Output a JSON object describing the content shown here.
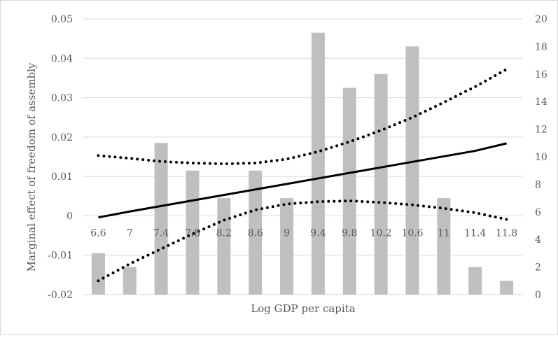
{
  "chart_data": {
    "type": "bar",
    "title": "",
    "xlabel": "Log GDP per capita",
    "ylabel": "Marginal effect of freedom of assembly",
    "categories": [
      "6.6",
      "7",
      "7.4",
      "7.8",
      "8.2",
      "8.6",
      "9",
      "9.4",
      "9.8",
      "10.2",
      "10.6",
      "11",
      "11.4",
      "11.8"
    ],
    "y_primary": {
      "min": -0.02,
      "max": 0.05,
      "ticks": [
        "-0.02",
        "-0.01",
        "0",
        "0.01",
        "0.02",
        "0.03",
        "0.04",
        "0.05"
      ]
    },
    "y_secondary": {
      "min": 0,
      "max": 20,
      "ticks": [
        "0",
        "2",
        "4",
        "6",
        "8",
        "10",
        "12",
        "14",
        "16",
        "18",
        "20"
      ]
    },
    "series": [
      {
        "type": "bar",
        "axis": "secondary",
        "values": [
          3,
          2,
          11,
          9,
          7,
          9,
          7,
          19,
          15,
          16,
          18,
          7,
          2,
          1
        ]
      },
      {
        "type": "line",
        "style": "solid",
        "axis": "primary",
        "values": [
          -0.0004,
          0.0011,
          0.0025,
          0.0039,
          0.0053,
          0.0067,
          0.0081,
          0.0095,
          0.0109,
          0.0123,
          0.0137,
          0.0151,
          0.0165,
          0.0184
        ]
      },
      {
        "type": "line",
        "style": "dotted",
        "axis": "primary",
        "values": [
          0.0153,
          0.0146,
          0.0138,
          0.0134,
          0.0132,
          0.0134,
          0.0144,
          0.0163,
          0.0188,
          0.0217,
          0.025,
          0.0288,
          0.0328,
          0.0372
        ]
      },
      {
        "type": "line",
        "style": "dotted",
        "axis": "primary",
        "values": [
          -0.0165,
          -0.0122,
          -0.0084,
          -0.0046,
          -0.0011,
          0.0015,
          0.003,
          0.0036,
          0.0038,
          0.0034,
          0.0028,
          0.0019,
          0.0008,
          -0.0009
        ]
      }
    ],
    "colors": {
      "bars": "#bfbfbf",
      "line": "#000000",
      "grid": "#d9d9d9",
      "text": "#595959"
    },
    "grid": true,
    "legend": "none"
  }
}
